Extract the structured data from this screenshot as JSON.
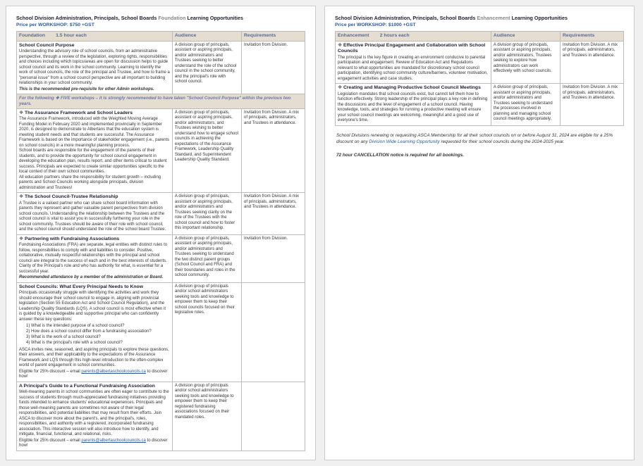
{
  "left": {
    "title_pre": "School Division Administration, Principals, School Boards",
    "title_gray": "Foundation",
    "title_post": "Learning Opportunities",
    "price": "Price per WORKSHOP: $750 +GST",
    "headers": {
      "col1a": "Foundation",
      "col1b": "1.5 hour each",
      "col2": "Audience",
      "col3": "Requirements"
    },
    "row1": {
      "title": "School Council Purpose",
      "desc": "Understanding the advisory role of school councils, from an administrative perspective, through a review of the legislation, exploring rights, responsibilities and choices including which topics/areas are open for discussion helps to guide school council and its work in the school community. Learning to identify the work of school councils, the role of the principal and Trustee, and how to frame a \"personal issue\" from a school council perspective are all important to building relationships in your school community.",
      "desc2": "This is the recommended pre-requisite for other Admin workshops.",
      "aud": "A division group of principals, assistant or aspiring principals, and/or administrators and Trustees seeking to better understand the role of the school council in the school community, and the principal's role with school council.",
      "req": "Invitation from Division."
    },
    "spanner": "For the following ❖ FIVE workshops – it is strongly recommended to have taken \"School Council Purpose\" within the previous two years.",
    "row2": {
      "title": "The Assurance Framework and School Leaders",
      "desc": "The Assurance Framework, introduced with the Weighted Moving Average Funding Model in February 2020 and implemented provincially in September 2020, is designed to demonstrate to Albertans that the education system is meeting student needs and that students are successful. The Assurance Framework is based on the importance of stakeholder engagement (i.e., parents on school councils) in a more meaningful planning process.\nSchool boards are responsible for the engagement of the parents of their students, and to provide the opportunity for school council engagement in developing the education plan, results report, and other items critical to student success. Principals are expected to create similar opportunities specific to the local context of their own school communities.\nAll education partners share the responsibility for student growth – including parents and School Councils working alongside principals, division administration and Trustees!",
      "aud": "A division group of principals, assistant or aspiring principals, and/or administrators, and Trustees wishing to better understand how to engage school councils in achieving the expectations of the Assurance Framework, Leadership Quality Standard, and Superintendent Leadership Quality Standard.",
      "req": "Invitation from Division. A mix of principals, administrators, and Trustees in attendance."
    },
    "row3": {
      "title": "The School Council-Trustee Relationship",
      "desc": "A Trustee is a valued partner who can share school board information with parents they represent and gather valuable parent perspectives from division school councils. Understanding the relationship between the Trustees and the school council is vital to assist you in successfully furthering your role in the school community. Trustees should be aware of their role with school council, and the school council should understand the role of the school board Trustee.",
      "aud": "A division group of principals, assistant or aspiring principals, and/or administrators and Trustees seeking clarity on the role of the Trustees with the school council and how to foster this important relationship.",
      "req": "Invitation from Division. A mix of principals, administrators, and Trustees in attendance."
    },
    "row4": {
      "title": "Partnering with Fundraising Associations",
      "desc": "Fundraising Associations (FRA) are separate, legal entities with distinct rules to follow, responsibilities to comply with and liabilities to consider. Positive, collaborative, mutually respectful relationships with the principal and school council are integral to the success of each and in the best interests of students. Clarity of the Principal's role and who has authority for what, is essential for a successful year.",
      "desc2": "Recommended attendance by a member of the administration or Board.",
      "aud": "A division group of principals, assistant or aspiring principals, and/or administrators and Trustees seeking to understand the two distinct parent groups (School Council and FRA) and their boundaries and roles in the school community.",
      "req": "Invitation from Division."
    },
    "row5": {
      "title": "School Councils: What Every Principal Needs to Know",
      "desc_a": "Principals occasionally struggle with identifying the activities and work they should encourage their school council to engage in, aligning with provincial legislation (Section 55 Education Act and School Council Regulation), and the Leadership Quality Standards (LQS). A school council is most effective when it is guided by a knowledgeable and supportive principal who can confidently answer these key questions:",
      "q1": "1)   What is the intended purpose of a school council?",
      "q2": "2)   How does a school council differ from a fundraising association?",
      "q3": "3)   What is the work of a school council?",
      "q4": "4)   What is the principal's role with a school council?",
      "desc_b": "ASCA invites new, seasoned, and aspiring principals to explore these questions, their answers, and their applicability to the expectations of the Assurance Framework and LQS through this high-level introduction to the often-complex world of parent engagement in school communities.",
      "disc_pre": "Eligible for 25% discount – email ",
      "disc_link": "parents@albertaschoolcouncils.ca",
      "disc_post": " to discover how!",
      "aud": "A division group of principals and/or school administrators seeking tools and knowledge to empower them to keep their school councils focused on their legislative roles.",
      "req": ""
    },
    "row6": {
      "title": "A Principal's Guide to a Functional Fundraising Association",
      "desc": "Well-meaning parents in school communities are often eager to contribute to the success of students through much-appreciated fundraising initiatives providing funds intended to enhance students' educational experiences. Principals and those well-meaning parents are sometimes not aware of their legal responsibilities, and potential liabilities that may result from their efforts. Join ASCA to discover more about the parent's, and the principal's, roles, responsibilities, and authority with a registered, incorporated fundraising association. This interactive session will also introduce how to identify, and mitigate, financial, functional, and relational, risks.",
      "disc_pre": "Eligible for 25% discount – email ",
      "disc_link": "parents@albertaschoolcouncils.ca",
      "disc_post": " to discover how!",
      "aud": "A division group of principals and/or school administrators seeking tools and knowledge to empower them to keep their registered fundraising associations focused on their mandated roles.",
      "req": ""
    }
  },
  "right": {
    "title_pre": "School Division Administration, Principals, School Boards",
    "title_gray": "Enhancement",
    "title_post": "Learning Opportunities",
    "price": "Price per WORKSHOP: $1000 +GST",
    "headers": {
      "col1a": "Enhancement",
      "col1b": "2 hours each",
      "col2": "Audience",
      "col3": "Requirements"
    },
    "row1": {
      "title": "Effective Principal Engagement and Collaboration with School Councils",
      "desc": "The principal is the key figure in creating an environment conducive to parental participation and engagement. Review of Education Act and Regulations relevant to what opportunities are mandated for discretionary school council participation, identifying school community culture/barriers, volunteer motivation, engagement activities and case studies.",
      "aud": "A division group of principals, assistant or aspiring principals, and/or administrators, Trustees seeking to explore how administrators can work effectively with school councils.",
      "req": "Invitation from Division. A mix of principals, administrators, and Trustees in attendance."
    },
    "row2": {
      "title": "Creating and Managing Productive School Council Meetings",
      "desc": "Legislation mandates that school councils exist, but cannot tell them how to function effectively. Strong leadership of the principal plays a key role in defining the discussions and the level of engagement of a school council. Having knowledge, tools, and strategies for running a productive meeting will ensure your school council meetings are welcoming, meaningful and a good use of everyone's time.",
      "aud": "A division group of principals, assistant or aspiring principals, and/or administrators and Trustees seeking to understand the processes involved in planning and managing school council meetings appropriately.",
      "req": "Invitation from Division. A mix of principals, administrators, and Trustees in attendance."
    },
    "note1_a": "School Divisions renewing or requesting ASCA Membership for all their school councils on or before August 31, 2024 are eligible for a 25% discount on any ",
    "note1_link": "Division Wide Learning Opportunity",
    "note1_b": " requested for their school councils during the 2024-2025 year.",
    "note2": "72 hour CANCELLATION notice is required for all bookings."
  }
}
